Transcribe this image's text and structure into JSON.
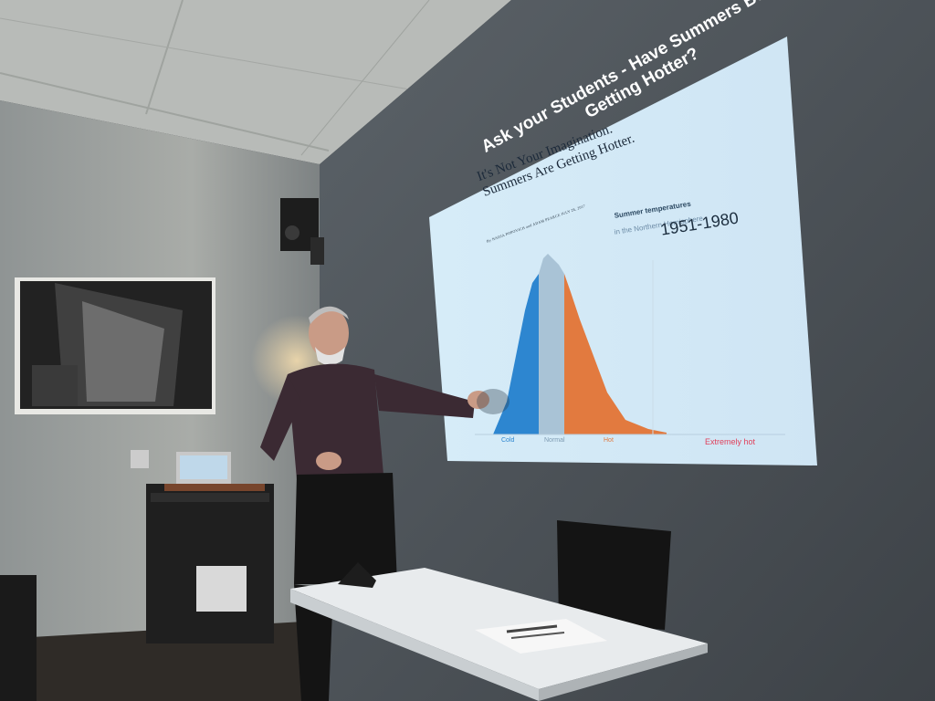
{
  "slide": {
    "headline_line1": "Ask your Students - Have Summers Been",
    "headline_line2": "Getting Hotter?",
    "article_title_line1": "It's Not Your Imagination.",
    "article_title_line2": "Summers Are Getting Hotter.",
    "byline": "By NADJA POPOVICH and ADAM PEARCE JULY 28, 2017",
    "chart_label_bold": "Summer temperatures",
    "chart_label_sub": "in the Northern Hemisphere",
    "period": "1951-1980",
    "axis_labels": [
      "Cold",
      "Normal",
      "Hot",
      "Extremely hot"
    ]
  },
  "colors": {
    "slide_bg": "#cfe6f5",
    "cold": "#2d86d0",
    "normal": "#a9c3d6",
    "hot": "#e27a3f",
    "extremely_hot": "#e0405b"
  }
}
